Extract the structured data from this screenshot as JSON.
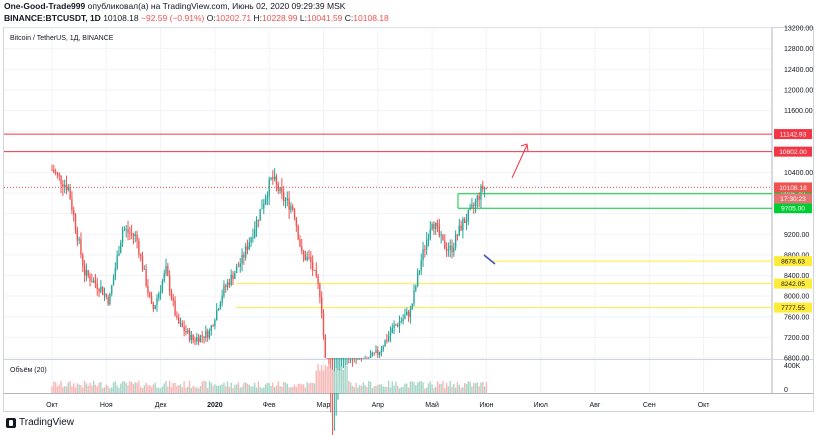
{
  "header": {
    "line1_user": "One-Good-Trade999",
    "line1_rest": "опубликовал(а) на TradingView.com, Июнь 02, 2020 09:29:39 MSK",
    "symbol": "BINANCE:BTCUSDT, 1D",
    "last": "10108.18",
    "change": "−92.59 (−0.91%)",
    "o_label": "O:",
    "o_value": "10202.71",
    "h_label": "H:",
    "h_value": "10228.99",
    "l_label": "L:",
    "l_value": "10041.59",
    "c_label": "C:",
    "c_value": "10108.18"
  },
  "footer": {
    "brand": "TradingView"
  },
  "colors": {
    "up": "#26a69a",
    "down": "#ef5350",
    "resistance": "#f23645",
    "support_green": "#00cc33",
    "support_yellow": "#ffeb3b",
    "grid": "#f0f3fa",
    "axis_text": "#131722"
  },
  "chart_data": {
    "type": "candlestick",
    "title": "Bitcoin / TetherUS, 1Д, BINANCE",
    "volume_label": "Объём (20)",
    "x": {
      "categories": [
        "Окт",
        "Ноя",
        "Дек",
        "2020",
        "Фев",
        "Мар",
        "Апр",
        "Май",
        "Июн",
        "Июл",
        "Авг",
        "Сен",
        "Окт"
      ]
    },
    "y": {
      "range": [
        6800,
        13200
      ],
      "ticks": [
        "13200.00",
        "12800.00",
        "12400.00",
        "12000.00",
        "11600.00",
        "10400.00",
        "9200.00",
        "8800.00",
        "8400.00",
        "8000.00",
        "7600.00",
        "7200.00",
        "6800.00"
      ]
    },
    "volume_axis": {
      "ticks": [
        "400K",
        "0"
      ],
      "max": 400
    },
    "price_levels": [
      {
        "value": 11142.93,
        "label": "11142.93",
        "color": "red"
      },
      {
        "value": 10802.0,
        "label": "10802.00",
        "color": "red"
      },
      {
        "value": 9986.4,
        "label": "9986.40",
        "color": "green"
      },
      {
        "value": 9705.0,
        "label": "9705.00",
        "color": "green"
      },
      {
        "value": 8678.63,
        "label": "8678.63",
        "color": "yellow"
      },
      {
        "value": 8242.05,
        "label": "8242.05",
        "color": "yellow"
      },
      {
        "value": 7777.55,
        "label": "7777.55",
        "color": "yellow"
      }
    ],
    "last_price": {
      "value": 10108.18,
      "label": "10108.18",
      "countdown": "17:30:23"
    },
    "series": [
      {
        "name": "BTCUSDT",
        "anchors": [
          {
            "m": 0.0,
            "p": 10450
          },
          {
            "m": 0.3,
            "p": 10100
          },
          {
            "m": 0.6,
            "p": 8450
          },
          {
            "m": 0.9,
            "p": 8150
          },
          {
            "m": 1.05,
            "p": 7900
          },
          {
            "m": 1.3,
            "p": 9300
          },
          {
            "m": 1.55,
            "p": 9150
          },
          {
            "m": 1.85,
            "p": 7700
          },
          {
            "m": 2.1,
            "p": 8500
          },
          {
            "m": 2.3,
            "p": 7500
          },
          {
            "m": 2.6,
            "p": 7150
          },
          {
            "m": 2.9,
            "p": 7300
          },
          {
            "m": 3.15,
            "p": 8100
          },
          {
            "m": 3.5,
            "p": 8700
          },
          {
            "m": 3.75,
            "p": 9400
          },
          {
            "m": 4.05,
            "p": 10300
          },
          {
            "m": 4.25,
            "p": 9900
          },
          {
            "m": 4.45,
            "p": 9700
          },
          {
            "m": 4.6,
            "p": 8800
          },
          {
            "m": 4.75,
            "p": 8700
          },
          {
            "m": 4.95,
            "p": 8000
          },
          {
            "m": 5.15,
            "p": 5000
          },
          {
            "m": 5.35,
            "p": 6500
          },
          {
            "m": 5.6,
            "p": 6600
          },
          {
            "m": 6.0,
            "p": 6900
          },
          {
            "m": 6.3,
            "p": 7400
          },
          {
            "m": 6.6,
            "p": 7700
          },
          {
            "m": 6.8,
            "p": 8700
          },
          {
            "m": 7.0,
            "p": 9500
          },
          {
            "m": 7.2,
            "p": 9000
          },
          {
            "m": 7.35,
            "p": 8900
          },
          {
            "m": 7.55,
            "p": 9400
          },
          {
            "m": 7.7,
            "p": 9600
          },
          {
            "m": 7.93,
            "p": 10100
          },
          {
            "m": 8.02,
            "p": 10108
          }
        ]
      }
    ]
  }
}
